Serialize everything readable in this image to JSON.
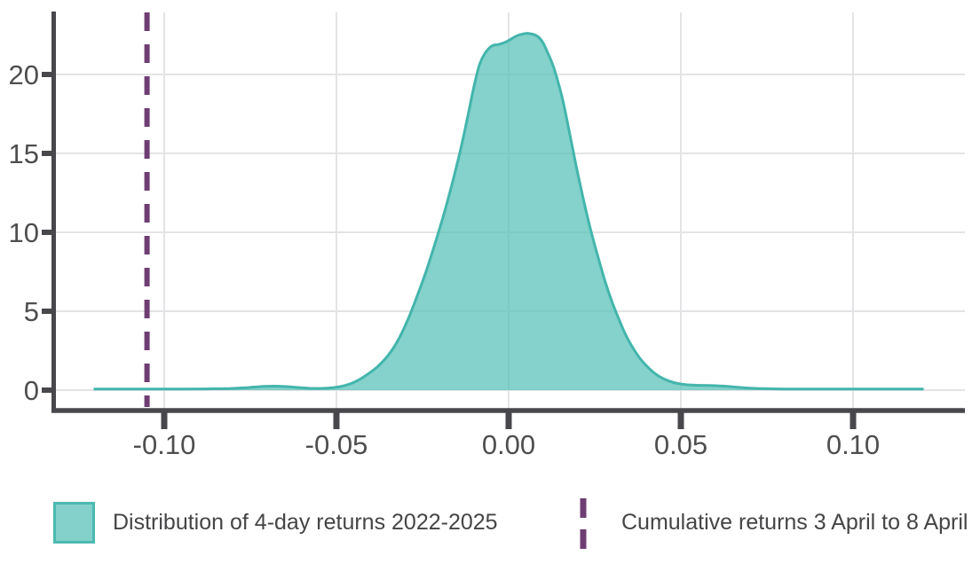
{
  "chart_data": {
    "type": "area",
    "subtype": "density",
    "xlabel": "",
    "ylabel": "",
    "xlim": [
      -0.131,
      0.132
    ],
    "ylim": [
      0,
      24
    ],
    "grid": true,
    "legend_position": "bottom",
    "x_ticks": [
      {
        "value": -0.1,
        "label": "-0.10"
      },
      {
        "value": -0.05,
        "label": "-0.05"
      },
      {
        "value": 0.0,
        "label": "0.00"
      },
      {
        "value": 0.05,
        "label": "0.05"
      },
      {
        "value": 0.1,
        "label": "0.10"
      }
    ],
    "y_ticks": [
      {
        "value": 0,
        "label": "0"
      },
      {
        "value": 5,
        "label": "5"
      },
      {
        "value": 10,
        "label": "10"
      },
      {
        "value": 15,
        "label": "15"
      },
      {
        "value": 20,
        "label": "20"
      }
    ],
    "series": [
      {
        "name": "Distribution of 4-day returns 2022-2025",
        "type": "density-area",
        "points": [
          [
            -0.1205,
            0.07
          ],
          [
            -0.112,
            0.07
          ],
          [
            -0.104,
            0.07
          ],
          [
            -0.096,
            0.07
          ],
          [
            -0.088,
            0.08
          ],
          [
            -0.081,
            0.1
          ],
          [
            -0.076,
            0.16
          ],
          [
            -0.071,
            0.24
          ],
          [
            -0.0665,
            0.25
          ],
          [
            -0.062,
            0.18
          ],
          [
            -0.057,
            0.11
          ],
          [
            -0.0525,
            0.13
          ],
          [
            -0.049,
            0.22
          ],
          [
            -0.046,
            0.4
          ],
          [
            -0.0435,
            0.65
          ],
          [
            -0.041,
            1.0
          ],
          [
            -0.038,
            1.5
          ],
          [
            -0.035,
            2.2
          ],
          [
            -0.032,
            3.2
          ],
          [
            -0.029,
            4.6
          ],
          [
            -0.0265,
            6.0
          ],
          [
            -0.024,
            7.5
          ],
          [
            -0.0215,
            9.2
          ],
          [
            -0.019,
            11.0
          ],
          [
            -0.0165,
            13.0
          ],
          [
            -0.014,
            15.2
          ],
          [
            -0.012,
            17.2
          ],
          [
            -0.01,
            19.3
          ],
          [
            -0.0085,
            20.6
          ],
          [
            -0.007,
            21.3
          ],
          [
            -0.0055,
            21.7
          ],
          [
            -0.0045,
            21.85
          ],
          [
            -0.003,
            21.9
          ],
          [
            -0.0015,
            22.0
          ],
          [
            0.0,
            22.15
          ],
          [
            0.0015,
            22.35
          ],
          [
            0.003,
            22.5
          ],
          [
            0.005,
            22.6
          ],
          [
            0.007,
            22.55
          ],
          [
            0.0085,
            22.4
          ],
          [
            0.01,
            22.0
          ],
          [
            0.0115,
            21.3
          ],
          [
            0.013,
            20.5
          ],
          [
            0.0145,
            19.4
          ],
          [
            0.016,
            18.1
          ],
          [
            0.0185,
            15.4
          ],
          [
            0.02,
            13.8
          ],
          [
            0.022,
            11.8
          ],
          [
            0.024,
            10.0
          ],
          [
            0.026,
            8.4
          ],
          [
            0.028,
            6.9
          ],
          [
            0.03,
            5.6
          ],
          [
            0.032,
            4.5
          ],
          [
            0.034,
            3.5
          ],
          [
            0.036,
            2.7
          ],
          [
            0.038,
            2.05
          ],
          [
            0.04,
            1.55
          ],
          [
            0.0425,
            1.05
          ],
          [
            0.045,
            0.72
          ],
          [
            0.048,
            0.48
          ],
          [
            0.051,
            0.36
          ],
          [
            0.0545,
            0.31
          ],
          [
            0.058,
            0.3
          ],
          [
            0.062,
            0.26
          ],
          [
            0.066,
            0.19
          ],
          [
            0.07,
            0.13
          ],
          [
            0.075,
            0.09
          ],
          [
            0.081,
            0.07
          ],
          [
            0.089,
            0.07
          ],
          [
            0.098,
            0.07
          ],
          [
            0.108,
            0.07
          ],
          [
            0.1205,
            0.07
          ]
        ]
      },
      {
        "name": "Cumulative returns 3 April to 8 April",
        "type": "vline",
        "x": -0.105
      }
    ],
    "colors": {
      "area_fill": "#55c0b7",
      "area_fill_opacity": 0.72,
      "area_stroke": "#43b5ac",
      "vline": "#6e3e72",
      "grid": "#e4e4e6",
      "axis": "#48484c",
      "tick_text": "#4e4e50"
    }
  },
  "legend": {
    "items": [
      {
        "label": "Distribution of 4-day returns 2022-2025",
        "swatch": "area-swatch"
      },
      {
        "label": "Cumulative returns 3 April to 8 April",
        "swatch": "dashed-line-swatch"
      }
    ]
  }
}
